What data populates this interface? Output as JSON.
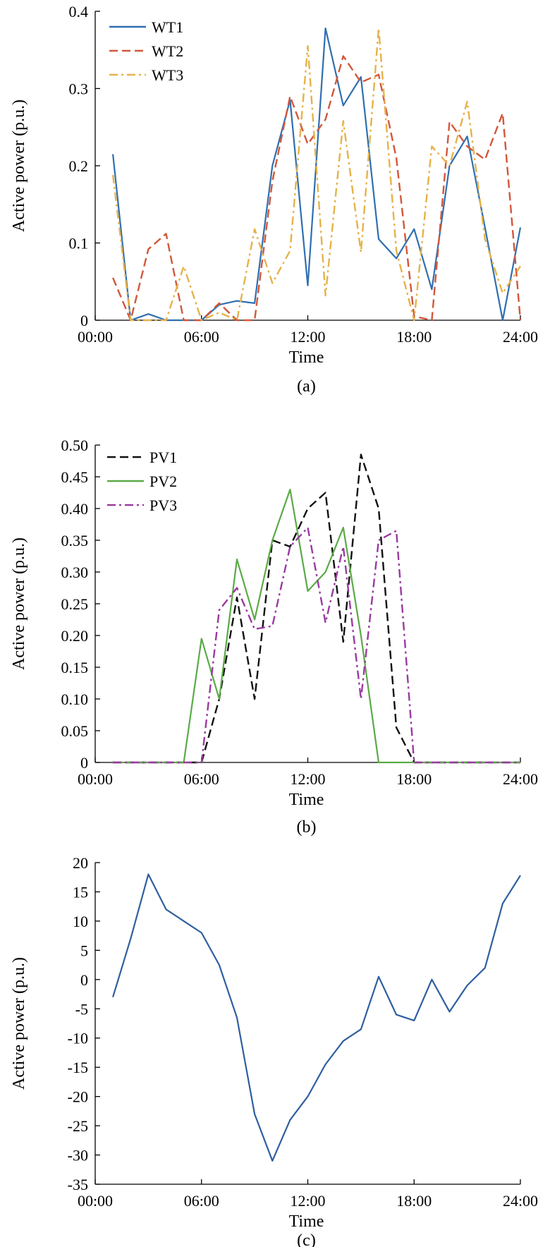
{
  "chart_data": [
    {
      "type": "line",
      "caption": "(a)",
      "xlabel": "Time",
      "ylabel": "Active power (p.u.)",
      "xlim": [
        0,
        24
      ],
      "ylim": [
        0,
        0.4
      ],
      "xticks": [
        0,
        6,
        12,
        18,
        24
      ],
      "xtick_labels": [
        "00:00",
        "06:00",
        "12:00",
        "18:00",
        "24:00"
      ],
      "yticks": [
        0,
        0.1,
        0.2,
        0.3,
        0.4
      ],
      "ytick_labels": [
        "0",
        "0.1",
        "0.2",
        "0.3",
        "0.4"
      ],
      "legend_position": "top-left",
      "x": [
        1,
        2,
        3,
        4,
        5,
        6,
        7,
        8,
        9,
        10,
        11,
        12,
        13,
        14,
        15,
        16,
        17,
        18,
        19,
        20,
        21,
        22,
        23,
        24
      ],
      "series": [
        {
          "name": "WT1",
          "color": "#2f6fb0",
          "dash": "solid",
          "values": [
            0.215,
            0.0,
            0.008,
            0.0,
            0.0,
            0.0,
            0.02,
            0.025,
            0.022,
            0.2,
            0.285,
            0.045,
            0.378,
            0.278,
            0.315,
            0.105,
            0.08,
            0.118,
            0.04,
            0.2,
            0.238,
            0.12,
            0.0,
            0.12
          ]
        },
        {
          "name": "WT2",
          "color": "#d2573a",
          "dash": "dashed",
          "values": [
            0.055,
            0.0,
            0.092,
            0.112,
            0.0,
            0.0,
            0.022,
            0.0,
            0.0,
            0.18,
            0.29,
            0.228,
            0.26,
            0.342,
            0.308,
            0.318,
            0.21,
            0.005,
            0.0,
            0.257,
            0.225,
            0.208,
            0.268,
            0.0
          ]
        },
        {
          "name": "WT3",
          "color": "#e6b24a",
          "dash": "dashdot",
          "values": [
            0.188,
            0.0,
            0.0,
            0.0,
            0.07,
            0.0,
            0.01,
            0.0,
            0.118,
            0.048,
            0.09,
            0.355,
            0.032,
            0.258,
            0.088,
            0.378,
            0.09,
            0.0,
            0.225,
            0.2,
            0.283,
            0.105,
            0.035,
            0.07
          ]
        }
      ]
    },
    {
      "type": "line",
      "caption": "(b)",
      "xlabel": "Time",
      "ylabel": "Active power (p.u.)",
      "xlim": [
        0,
        24
      ],
      "ylim": [
        0,
        0.5
      ],
      "xticks": [
        0,
        6,
        12,
        18,
        24
      ],
      "xtick_labels": [
        "00:00",
        "06:00",
        "12:00",
        "18:00",
        "24:00"
      ],
      "yticks": [
        0,
        0.05,
        0.1,
        0.15,
        0.2,
        0.25,
        0.3,
        0.35,
        0.4,
        0.45,
        0.5
      ],
      "ytick_labels": [
        "0",
        "0.05",
        "0.10",
        "0.15",
        "0.20",
        "0.25",
        "0.30",
        "0.35",
        "0.40",
        "0.45",
        "0.50"
      ],
      "legend_position": "top-left",
      "x": [
        1,
        2,
        3,
        4,
        5,
        6,
        7,
        8,
        9,
        10,
        11,
        12,
        13,
        14,
        15,
        16,
        17,
        18,
        19,
        20,
        21,
        22,
        23,
        24
      ],
      "series": [
        {
          "name": "PV1",
          "color": "#111111",
          "dash": "dashed",
          "values": [
            0,
            0,
            0,
            0,
            0,
            0,
            0.1,
            0.26,
            0.1,
            0.35,
            0.34,
            0.4,
            0.425,
            0.19,
            0.485,
            0.4,
            0.055,
            0.0,
            0,
            0,
            0,
            0,
            0,
            0
          ]
        },
        {
          "name": "PV2",
          "color": "#5aaa46",
          "dash": "solid",
          "values": [
            0,
            0,
            0,
            0,
            0,
            0.195,
            0.1,
            0.32,
            0.225,
            0.35,
            0.43,
            0.27,
            0.3,
            0.37,
            0.2,
            0.0,
            0,
            0,
            0,
            0,
            0,
            0,
            0,
            0
          ]
        },
        {
          "name": "PV3",
          "color": "#9a3aa0",
          "dash": "dashdot",
          "values": [
            0,
            0,
            0,
            0,
            0,
            0.0,
            0.24,
            0.275,
            0.21,
            0.215,
            0.34,
            0.37,
            0.22,
            0.34,
            0.1,
            0.35,
            0.365,
            0.0,
            0,
            0,
            0,
            0,
            0,
            0
          ]
        }
      ]
    },
    {
      "type": "line",
      "caption": "(c)",
      "xlabel": "Time",
      "ylabel": "Active power (p.u.)",
      "xlim": [
        0,
        24
      ],
      "ylim": [
        -35,
        20
      ],
      "xticks": [
        0,
        6,
        12,
        18,
        24
      ],
      "xtick_labels": [
        "00:00",
        "06:00",
        "12:00",
        "18:00",
        "24:00"
      ],
      "yticks": [
        -35,
        -30,
        -25,
        -20,
        -15,
        -10,
        -5,
        0,
        5,
        10,
        15,
        20
      ],
      "ytick_labels": [
        "-35",
        "-30",
        "-25",
        "-20",
        "-15",
        "-10",
        "-5",
        "0",
        "5",
        "10",
        "15",
        "20"
      ],
      "x": [
        1,
        2,
        3,
        4,
        5,
        6,
        7,
        8,
        9,
        10,
        11,
        12,
        13,
        14,
        15,
        16,
        17,
        18,
        19,
        20,
        21,
        22,
        23,
        24
      ],
      "series": [
        {
          "color": "#2f5fa0",
          "dash": "solid",
          "values": [
            -3.0,
            7.0,
            18.0,
            12.0,
            10.0,
            8.0,
            2.5,
            -6.5,
            -23.0,
            -31.0,
            -24.0,
            -20.0,
            -14.5,
            -10.5,
            -8.5,
            0.5,
            -6.0,
            -7.0,
            0.0,
            -5.5,
            -1.0,
            2.0,
            13.0,
            17.8
          ]
        }
      ]
    }
  ]
}
